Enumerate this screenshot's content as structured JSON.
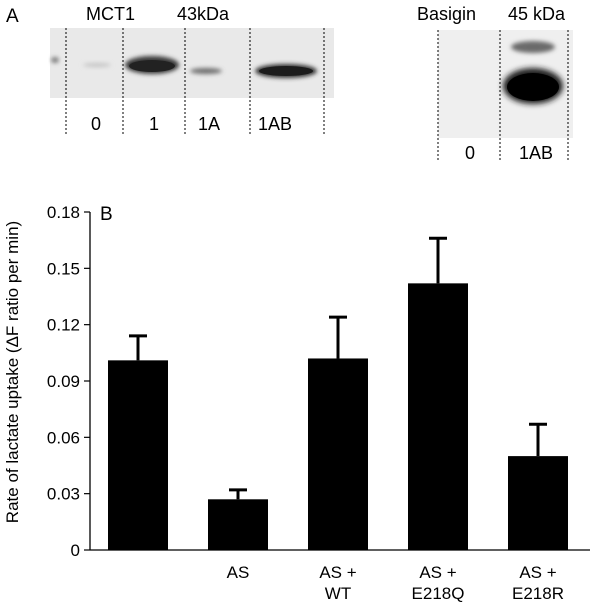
{
  "panel_a": {
    "label": "A",
    "mct1_blot": {
      "protein": "MCT1",
      "size": "43kDa",
      "lanes": [
        "0",
        "1",
        "1A",
        "1AB"
      ]
    },
    "basigin_blot": {
      "protein": "Basigin",
      "size": "45 kDa",
      "lanes": [
        "0",
        "1AB"
      ]
    }
  },
  "chart_data": {
    "type": "bar",
    "panel_label": "B",
    "ylabel": "Rate of  lactate uptake (ΔF ratio per min)",
    "xlabel": "",
    "ylim": [
      0,
      0.18
    ],
    "yticks": [
      "0",
      "0.03",
      "0.06",
      "0.09",
      "0.12",
      "0.15",
      "0.18"
    ],
    "categories": [
      [
        "",
        ""
      ],
      [
        "AS",
        ""
      ],
      [
        "AS +",
        "WT"
      ],
      [
        "AS +",
        "E218Q"
      ],
      [
        "AS +",
        "E218R"
      ]
    ],
    "values": [
      0.101,
      0.027,
      0.102,
      0.142,
      0.05
    ],
    "errors": [
      0.013,
      0.005,
      0.022,
      0.024,
      0.017
    ],
    "bar_color": "#000000",
    "grid": false,
    "legend": "none"
  }
}
